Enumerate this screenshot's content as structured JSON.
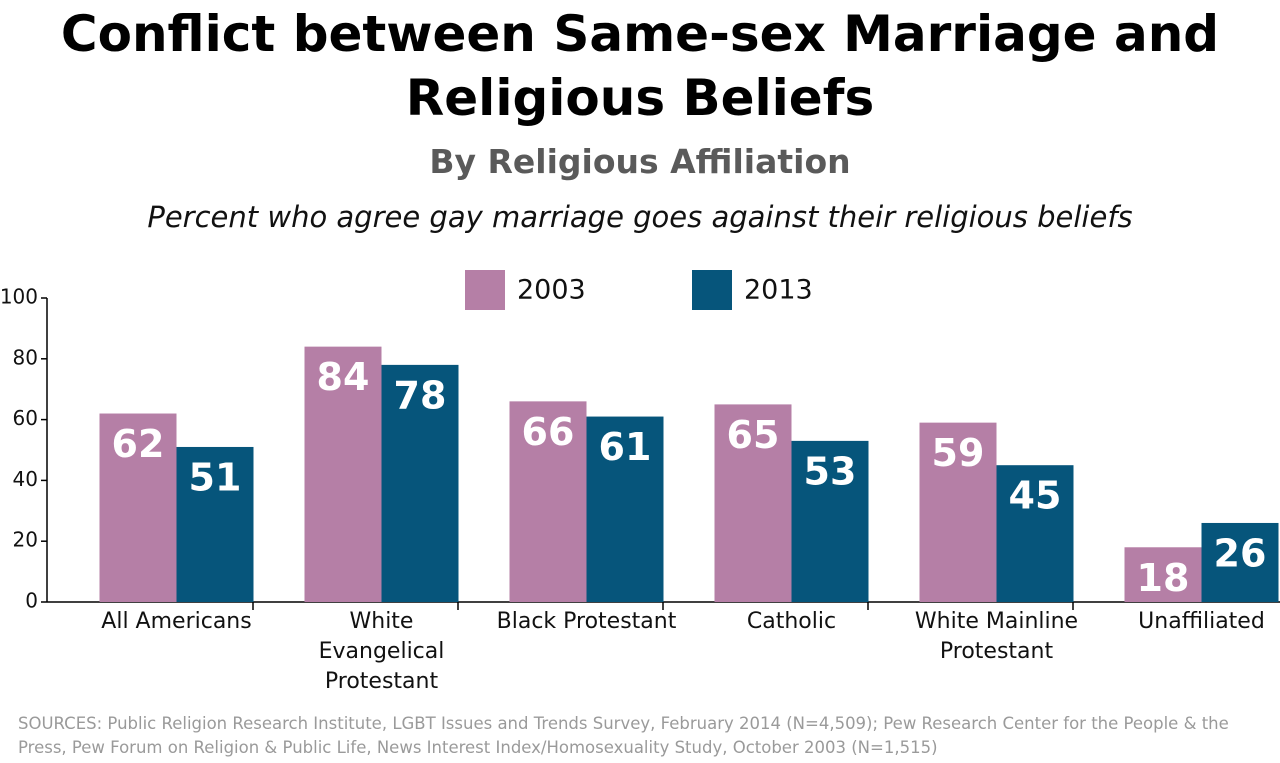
{
  "chart_data": {
    "type": "bar",
    "title": "Conflict between Same-sex Marriage and Religious Beliefs",
    "subtitle": "By Religious Affiliation",
    "annotation": "Percent who agree gay marriage goes against their religious beliefs",
    "categories": [
      "All Americans",
      "White\nEvangelical\nProtestant",
      "Black Protestant",
      "Catholic",
      "White Mainline\nProtestant",
      "Unaffiliated"
    ],
    "series": [
      {
        "name": "2003",
        "color": "#b57fa6",
        "values": [
          62,
          84,
          66,
          65,
          59,
          18
        ]
      },
      {
        "name": "2013",
        "color": "#06557b",
        "values": [
          51,
          78,
          61,
          53,
          45,
          26
        ]
      }
    ],
    "ylim": [
      0,
      100
    ],
    "yticks": [
      0,
      20,
      40,
      60,
      80,
      100
    ],
    "legend": "top",
    "source": "SOURCES: Public Religion Research Institute, LGBT Issues and Trends Survey, February 2014 (N=4,509); Pew Research Center for the People & the Press, Pew Forum on Religion & Public Life, News Interest Index/Homosexuality Study, October 2003 (N=1,515)"
  }
}
